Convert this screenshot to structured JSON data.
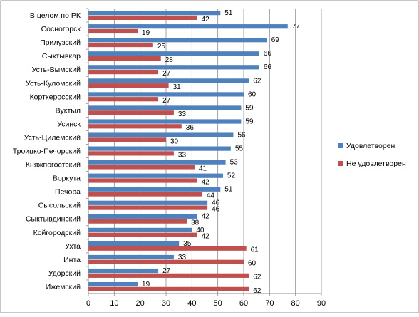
{
  "chart_data": {
    "type": "bar",
    "orientation": "horizontal",
    "categories": [
      "В целом по РК",
      "Сосногорск",
      "Прилузский",
      "Сыктывкар",
      "Усть-Вымский",
      "Усть-Куломский",
      "Корткеросский",
      "Вуктыл",
      "Усинск",
      "Усть-Цилемский",
      "Троицко-Печорский",
      "Княжпогостский",
      "Воркута",
      "Печора",
      "Сысольский",
      "Сыктывдинский",
      "Койгородский",
      "Ухта",
      "Инта",
      "Удорский",
      "Ижемский"
    ],
    "series": [
      {
        "name": "Удовлетворен",
        "color": "#4F81BD",
        "values": [
          51,
          77,
          69,
          66,
          66,
          62,
          60,
          59,
          59,
          56,
          55,
          53,
          52,
          51,
          46,
          42,
          40,
          35,
          33,
          27,
          19
        ]
      },
      {
        "name": "Не удовлетворен",
        "color": "#C0504D",
        "values": [
          42,
          19,
          25,
          28,
          27,
          31,
          27,
          33,
          36,
          30,
          33,
          41,
          42,
          44,
          46,
          38,
          42,
          61,
          60,
          62,
          62
        ]
      }
    ],
    "xlim": [
      0,
      90
    ],
    "xticks": [
      "0",
      "10",
      "20",
      "30",
      "40",
      "50",
      "60",
      "70",
      "80",
      "90"
    ],
    "grid": true,
    "legend": "right"
  }
}
